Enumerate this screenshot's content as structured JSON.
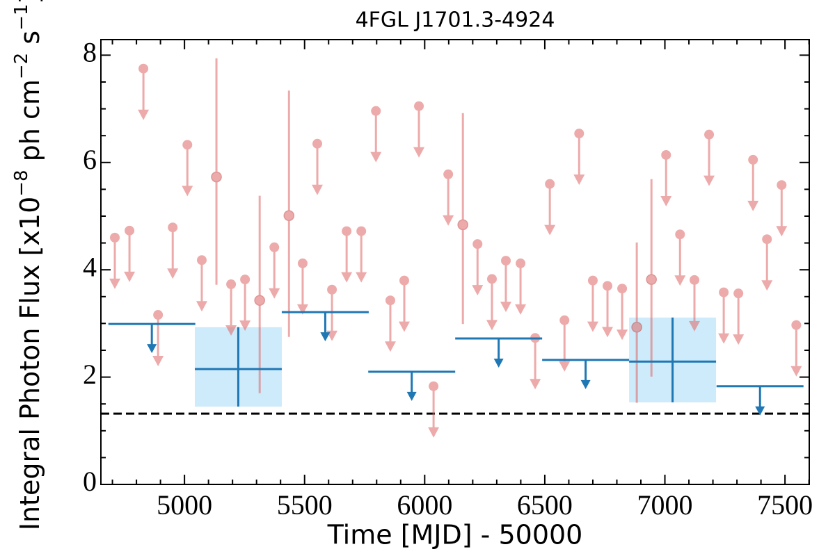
{
  "chart_data": {
    "type": "lightcurve",
    "title": "4FGL J1701.3-4924",
    "xlabel": "Time [MJD] - 50000",
    "ylabel_parts": [
      "Integral Photon Flux [x10",
      "−8",
      " ph cm",
      "−2",
      " s",
      "−1",
      "]"
    ],
    "xlim": [
      4652,
      7601
    ],
    "ylim": [
      0,
      8.29
    ],
    "xticks": [
      5000,
      5500,
      6000,
      6500,
      7000,
      7500
    ],
    "yticks": [
      0,
      2,
      4,
      6,
      8
    ],
    "xminorticks": [
      4700,
      4800,
      4900,
      5100,
      5200,
      5300,
      5400,
      5600,
      5700,
      5800,
      5900,
      6100,
      6200,
      6300,
      6400,
      6600,
      6700,
      6800,
      6900,
      7100,
      7200,
      7300,
      7400,
      7600
    ],
    "yminorticks": [
      0.5,
      1,
      1.5,
      2.5,
      3,
      3.5,
      4.5,
      5,
      5.5,
      6.5,
      7,
      7.5
    ],
    "hline": {
      "value": 1.32,
      "color": "#000000",
      "dashed": true
    },
    "series": [
      {
        "kind": "upper_limit",
        "color": "#e06666",
        "x": [
          4710,
          4771,
          4829,
          4890,
          4951,
          5012,
          5072,
          5194,
          5252,
          5374,
          5492,
          5553,
          5614,
          5675,
          5736,
          5797,
          5857,
          5915,
          5976,
          6037,
          6098,
          6220,
          6280,
          6338,
          6399,
          6460,
          6521,
          6582,
          6643,
          6700,
          6761,
          6822,
          7005,
          7063,
          7123,
          7184,
          7245,
          7306,
          7367,
          7425,
          7486,
          7547
        ],
        "values": [
          4.6,
          4.73,
          7.75,
          3.16,
          4.79,
          6.33,
          4.18,
          3.73,
          3.82,
          4.42,
          4.12,
          6.35,
          3.63,
          4.72,
          4.72,
          6.96,
          3.43,
          3.8,
          7.05,
          1.83,
          5.78,
          4.48,
          3.83,
          4.17,
          4.12,
          2.73,
          5.6,
          3.06,
          6.54,
          3.8,
          3.7,
          3.65,
          6.14,
          4.66,
          3.81,
          6.52,
          3.58,
          3.56,
          6.05,
          4.57,
          5.58,
          2.97
        ]
      },
      {
        "kind": "detection",
        "color": "#e06666",
        "x": [
          5133,
          5313,
          5435,
          6159,
          6883,
          6944
        ],
        "values": [
          5.73,
          3.43,
          5.01,
          4.84,
          2.93,
          3.82
        ],
        "lo": [
          3.72,
          1.7,
          2.75,
          2.99,
          1.52,
          2.01
        ],
        "hi": [
          7.94,
          5.38,
          7.34,
          6.92,
          4.51,
          5.69
        ]
      },
      {
        "kind": "bin_upper_limit",
        "color": "#1f77b4",
        "x": [
          4864,
          5586,
          5946,
          6308,
          6670,
          7396
        ],
        "xerr": [
          181,
          181,
          181,
          181,
          181,
          181
        ],
        "values": [
          2.99,
          3.21,
          2.1,
          2.72,
          2.32,
          1.83
        ]
      },
      {
        "kind": "bin_detection",
        "color": "#1f77b4",
        "box_color": "#cdebfa",
        "x": [
          5224,
          7032
        ],
        "xerr": [
          181,
          181
        ],
        "values": [
          2.15,
          2.29
        ],
        "lo": [
          1.45,
          1.53
        ],
        "hi": [
          2.93,
          3.11
        ]
      }
    ]
  }
}
